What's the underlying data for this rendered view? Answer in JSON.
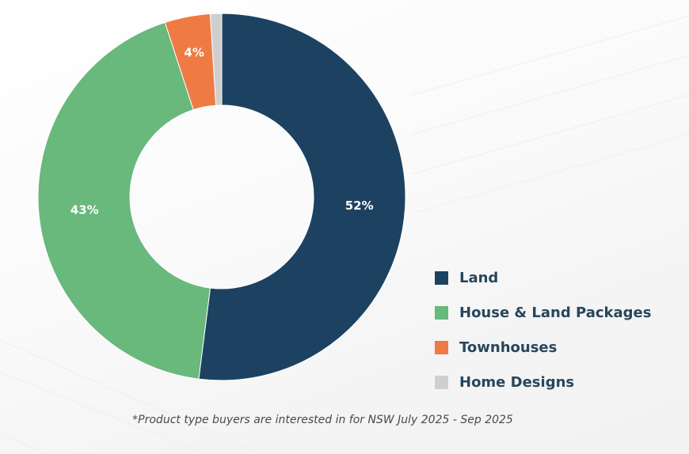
{
  "chart_data": {
    "type": "pie",
    "donut": true,
    "title": "",
    "slices": [
      {
        "name": "Land",
        "value": 52,
        "label": "52%",
        "color": "#1d4261"
      },
      {
        "name": "House & Land Packages",
        "value": 43,
        "label": "43%",
        "color": "#69b87c"
      },
      {
        "name": "Townhouses",
        "value": 4,
        "label": "4%",
        "color": "#ef7a44"
      },
      {
        "name": "Home Designs",
        "value": 1,
        "label": "",
        "color": "#cfcfcf"
      }
    ],
    "legend_placement": "bottom-right"
  },
  "footnote": "*Product type buyers are interested in for NSW July 2025 - Sep 2025"
}
